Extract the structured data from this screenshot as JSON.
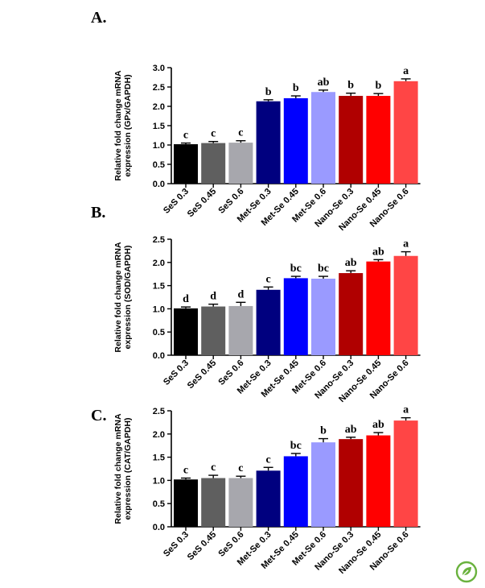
{
  "chart_data": [
    {
      "panel": "A.",
      "type": "bar",
      "ylabel_lines": [
        "Relative fold change mRNA",
        "expression (GPx/GAPDH)"
      ],
      "ylim": [
        0,
        3.0
      ],
      "yticks": [
        "0.0",
        "0.5",
        "1.0",
        "1.5",
        "2.0",
        "2.5",
        "3.0"
      ],
      "categories": [
        "SeS 0.3",
        "SeS 0.45",
        "SeS 0.6",
        "Met-Se 0.3",
        "Met-Se 0.45",
        "Met-Se 0.6",
        "Nano-Se 0.3",
        "Nano-Se 0.45",
        "Nano-Se 0.6"
      ],
      "values": [
        1.02,
        1.05,
        1.06,
        2.13,
        2.21,
        2.37,
        2.27,
        2.27,
        2.65
      ],
      "errors": [
        0.03,
        0.04,
        0.05,
        0.04,
        0.06,
        0.05,
        0.07,
        0.06,
        0.06
      ],
      "significance": [
        "c",
        "c",
        "c",
        "b",
        "b",
        "ab",
        "b",
        "b",
        "a"
      ],
      "colors": [
        "#000000",
        "#5f5f5f",
        "#a7a7ad",
        "#00007f",
        "#0000ff",
        "#9a9aff",
        "#b00000",
        "#ff0000",
        "#ff4545"
      ],
      "grid": false
    },
    {
      "panel": "B.",
      "type": "bar",
      "ylabel_lines": [
        "Relative fold change mRNA",
        "expression (SOD/GAPDH)"
      ],
      "ylim": [
        0,
        2.5
      ],
      "yticks": [
        "0.0",
        "0.5",
        "1.0",
        "1.5",
        "2.0",
        "2.5"
      ],
      "categories": [
        "SeS 0.3",
        "SeS 0.45",
        "SeS 0.6",
        "Met-Se 0.3",
        "Met-Se 0.45",
        "Met-Se 0.6",
        "Nano-Se 0.3",
        "Nano-Se 0.45",
        "Nano-Se 0.6"
      ],
      "values": [
        1.01,
        1.05,
        1.06,
        1.41,
        1.66,
        1.65,
        1.77,
        2.02,
        2.14
      ],
      "errors": [
        0.03,
        0.05,
        0.08,
        0.06,
        0.04,
        0.05,
        0.05,
        0.04,
        0.09
      ],
      "significance": [
        "d",
        "d",
        "d",
        "c",
        "bc",
        "bc",
        "ab",
        "ab",
        "a"
      ],
      "colors": [
        "#000000",
        "#5f5f5f",
        "#a7a7ad",
        "#00007f",
        "#0000ff",
        "#9a9aff",
        "#b00000",
        "#ff0000",
        "#ff4545"
      ],
      "grid": false
    },
    {
      "panel": "C.",
      "type": "bar",
      "ylabel_lines": [
        "Relative fold change mRNA",
        "expression (CAT/GAPDH)"
      ],
      "ylim": [
        0,
        2.5
      ],
      "yticks": [
        "0.0",
        "0.5",
        "1.0",
        "1.5",
        "2.0",
        "2.5"
      ],
      "categories": [
        "SeS 0.3",
        "SeS 0.45",
        "SeS 0.6",
        "Met-Se 0.3",
        "Met-Se 0.45",
        "Met-Se 0.6",
        "Nano-Se 0.3",
        "Nano-Se 0.45",
        "Nano-Se 0.6"
      ],
      "values": [
        1.02,
        1.05,
        1.05,
        1.21,
        1.52,
        1.82,
        1.89,
        1.97,
        2.29
      ],
      "errors": [
        0.03,
        0.06,
        0.04,
        0.07,
        0.06,
        0.08,
        0.04,
        0.06,
        0.06
      ],
      "significance": [
        "c",
        "c",
        "c",
        "c",
        "bc",
        "b",
        "ab",
        "ab",
        "a"
      ],
      "colors": [
        "#000000",
        "#5f5f5f",
        "#a7a7ad",
        "#00007f",
        "#0000ff",
        "#9a9aff",
        "#b00000",
        "#ff0000",
        "#ff4545"
      ],
      "grid": false
    }
  ],
  "logo": {
    "icon": "leaf-badge-icon",
    "color": "#6ab23e"
  }
}
